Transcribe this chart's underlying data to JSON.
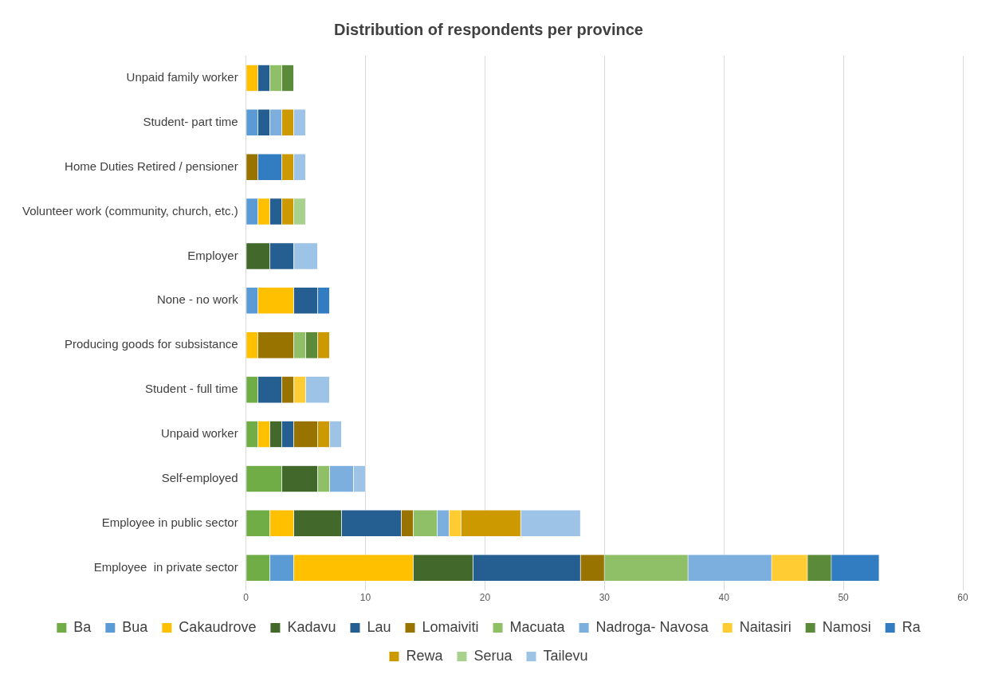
{
  "chart_data": {
    "type": "bar",
    "orientation": "horizontal",
    "stacked": true,
    "title": "Distribution of respondents per province",
    "categories": [
      "Unpaid family worker",
      "Student- part time",
      "Home Duties Retired / pensioner",
      "Volunteer work (community, church, etc.)",
      "Employer",
      "None - no work",
      "Producing goods for subsistance",
      "Student - full time",
      "Unpaid worker",
      "Self-employed",
      "Employee in public sector",
      "Employee  in private sector"
    ],
    "series": [
      {
        "name": "Ba",
        "color": "#70ad47",
        "values": [
          null,
          null,
          null,
          null,
          null,
          null,
          null,
          1,
          1,
          3,
          2,
          2
        ]
      },
      {
        "name": "Bua",
        "color": "#5b9bd5",
        "values": [
          null,
          1,
          null,
          1,
          null,
          1,
          null,
          null,
          null,
          null,
          null,
          2
        ]
      },
      {
        "name": "Cakaudrove",
        "color": "#ffc000",
        "values": [
          1,
          null,
          null,
          1,
          null,
          3,
          1,
          null,
          1,
          null,
          2,
          10
        ]
      },
      {
        "name": "Kadavu",
        "color": "#43682b",
        "values": [
          null,
          null,
          null,
          null,
          2,
          null,
          null,
          null,
          1,
          3,
          4,
          5
        ]
      },
      {
        "name": "Lau",
        "color": "#255e91",
        "values": [
          1,
          1,
          null,
          1,
          2,
          2,
          null,
          2,
          1,
          null,
          5,
          9
        ]
      },
      {
        "name": "Lomaiviti",
        "color": "#997300",
        "values": [
          null,
          null,
          1,
          null,
          null,
          null,
          3,
          1,
          2,
          null,
          1,
          2
        ]
      },
      {
        "name": "Macuata",
        "color": "#8fc068",
        "values": [
          1,
          null,
          null,
          null,
          null,
          null,
          1,
          null,
          null,
          1,
          2,
          7
        ]
      },
      {
        "name": "Nadroga- Navosa",
        "color": "#7cafdd",
        "values": [
          null,
          1,
          null,
          null,
          null,
          null,
          null,
          null,
          null,
          2,
          1,
          7
        ]
      },
      {
        "name": "Naitasiri",
        "color": "#ffcd33",
        "values": [
          null,
          null,
          null,
          null,
          null,
          null,
          null,
          1,
          null,
          null,
          1,
          3
        ]
      },
      {
        "name": "Namosi",
        "color": "#5b8a3b",
        "values": [
          1,
          null,
          null,
          null,
          null,
          null,
          1,
          null,
          null,
          null,
          null,
          2
        ]
      },
      {
        "name": "Ra",
        "color": "#327dc2",
        "values": [
          null,
          null,
          2,
          null,
          null,
          1,
          null,
          null,
          null,
          null,
          null,
          4
        ]
      },
      {
        "name": "Rewa",
        "color": "#cc9a00",
        "values": [
          null,
          1,
          1,
          1,
          null,
          null,
          1,
          null,
          1,
          null,
          5,
          null
        ]
      },
      {
        "name": "Serua",
        "color": "#a9d18e",
        "values": [
          null,
          null,
          null,
          1,
          null,
          null,
          null,
          null,
          null,
          null,
          null,
          null
        ]
      },
      {
        "name": "Tailevu",
        "color": "#9dc3e6",
        "values": [
          null,
          1,
          1,
          null,
          2,
          null,
          null,
          2,
          1,
          1,
          5,
          null
        ]
      }
    ],
    "xlim": [
      0,
      60
    ],
    "xticks": [
      0,
      10,
      20,
      30,
      40,
      50,
      60
    ],
    "grid": "x",
    "legend": "bottom"
  }
}
